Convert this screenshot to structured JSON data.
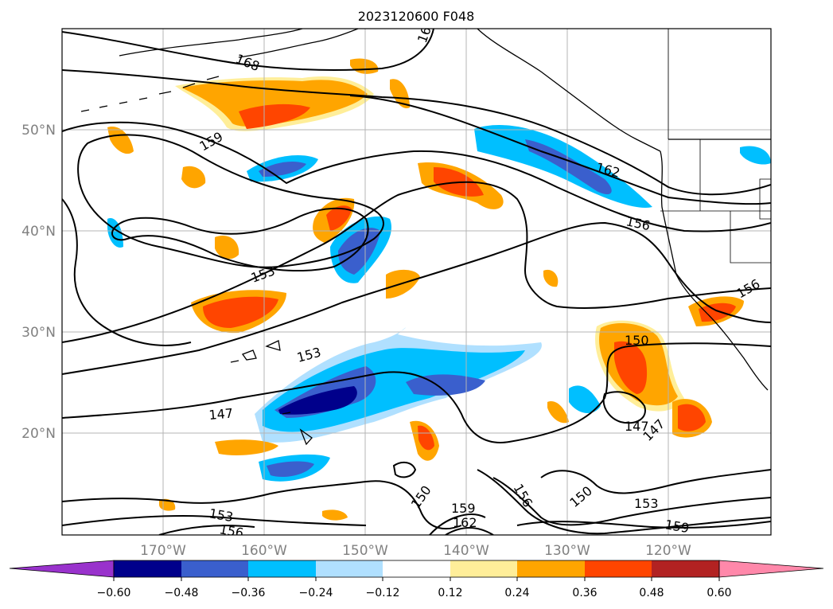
{
  "title": "2023120600 F048",
  "map": {
    "lat_labels": [
      "50°N",
      "40°N",
      "30°N",
      "20°N"
    ],
    "lon_labels": [
      "170°W",
      "160°W",
      "150°W",
      "140°W",
      "130°W",
      "120°W"
    ],
    "contour_labels": [
      "168",
      "16",
      "159",
      "162",
      "156",
      "153",
      "156",
      "153",
      "150",
      "147",
      "147",
      "147",
      "150",
      "156",
      "159",
      "162",
      "150",
      "153",
      "156",
      "153",
      "159"
    ]
  },
  "colorbar": {
    "tick_labels": [
      "−0.60",
      "−0.48",
      "−0.36",
      "−0.24",
      "−0.12",
      "0.12",
      "0.24",
      "0.36",
      "0.48",
      "0.60"
    ],
    "colors": [
      "#9932cc",
      "#00008b",
      "#3a5fcd",
      "#00bfff",
      "#b0e0ff",
      "#ffffff",
      "#ffee99",
      "#ffa500",
      "#ff4500",
      "#b22222",
      "#ff88aa"
    ]
  }
}
